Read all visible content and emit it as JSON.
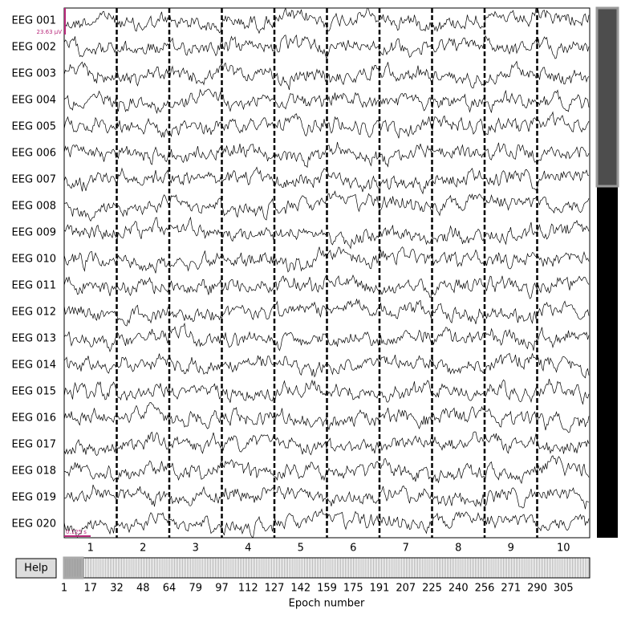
{
  "channels": [
    "EEG 001",
    "EEG 002",
    "EEG 003",
    "EEG 004",
    "EEG 005",
    "EEG 006",
    "EEG 007",
    "EEG 008",
    "EEG 009",
    "EEG 010",
    "EEG 011",
    "EEG 012",
    "EEG 013",
    "EEG 014",
    "EEG 015",
    "EEG 016",
    "EEG 017",
    "EEG 018",
    "EEG 019",
    "EEG 020"
  ],
  "epochs": [
    1,
    2,
    3,
    4,
    5,
    6,
    7,
    8,
    9,
    10
  ],
  "scale": {
    "amplitude": "23.63 µV",
    "time": "0.125 s"
  },
  "help_button": "Help",
  "epoch_bar": {
    "ticks": [
      1,
      17,
      32,
      48,
      64,
      79,
      97,
      112,
      127,
      142,
      159,
      175,
      191,
      207,
      225,
      240,
      256,
      271,
      290,
      305
    ],
    "label": "Epoch number"
  }
}
